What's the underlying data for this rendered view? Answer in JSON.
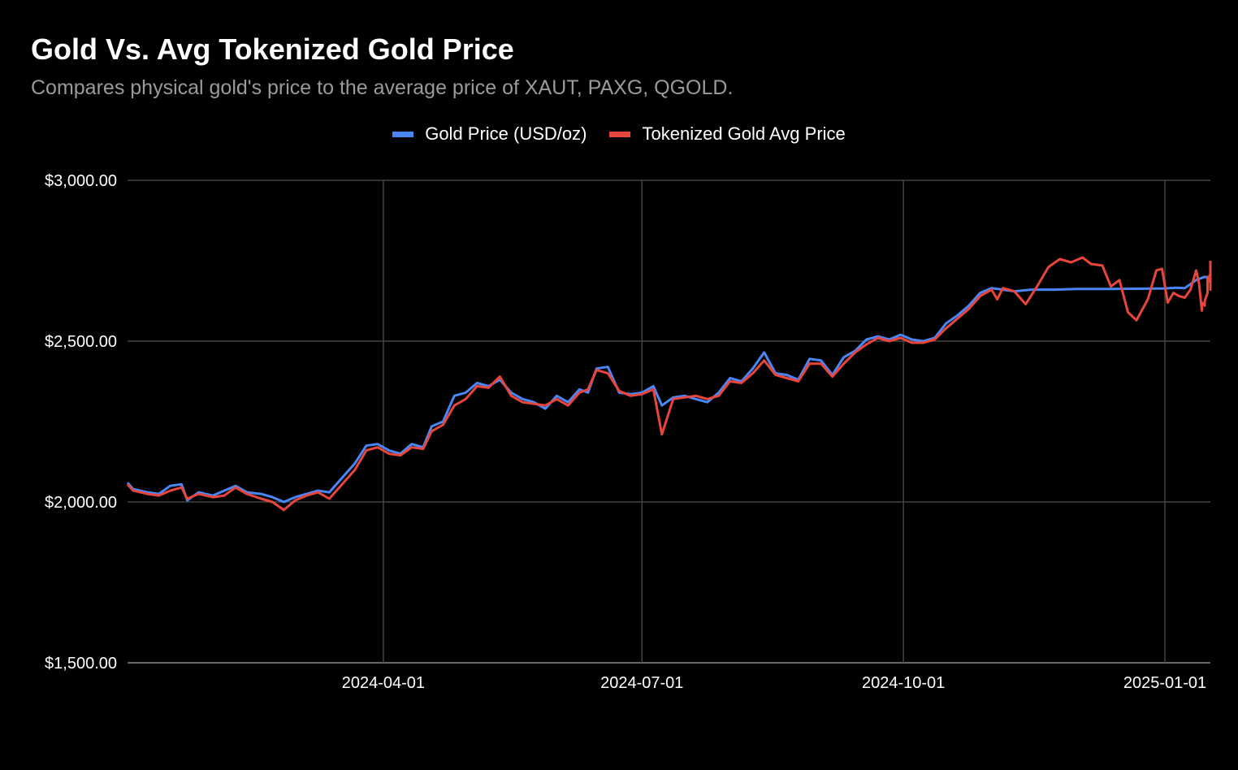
{
  "chart_data": {
    "type": "line",
    "title": "Gold Vs. Avg Tokenized Gold Price",
    "subtitle": "Compares physical gold's price to the average price of XAUT, PAXG, QGOLD.",
    "xlabel": "",
    "ylabel": "",
    "xlim": [
      "2024-01-02",
      "2025-01-17"
    ],
    "ylim": [
      1500,
      3000
    ],
    "y_ticks": [
      {
        "value": 1500,
        "label": "$1,500.00"
      },
      {
        "value": 2000,
        "label": "$2,000.00"
      },
      {
        "value": 2500,
        "label": "$2,500.00"
      },
      {
        "value": 3000,
        "label": "$3,000.00"
      }
    ],
    "x_ticks": [
      {
        "value": "2024-04-01",
        "label": "2024-04-01"
      },
      {
        "value": "2024-07-01",
        "label": "2024-07-01"
      },
      {
        "value": "2024-10-01",
        "label": "2024-10-01"
      },
      {
        "value": "2025-01-01",
        "label": "2025-01-01"
      }
    ],
    "grid": true,
    "legend_position": "top-center",
    "series": [
      {
        "name": "Gold Price (USD/oz)",
        "color": "#4a86f5",
        "points": [
          [
            "2024-01-02",
            2060
          ],
          [
            "2024-01-04",
            2040
          ],
          [
            "2024-01-09",
            2030
          ],
          [
            "2024-01-13",
            2025
          ],
          [
            "2024-01-17",
            2050
          ],
          [
            "2024-01-21",
            2055
          ],
          [
            "2024-01-23",
            2005
          ],
          [
            "2024-01-27",
            2030
          ],
          [
            "2024-02-01",
            2020
          ],
          [
            "2024-02-05",
            2035
          ],
          [
            "2024-02-09",
            2050
          ],
          [
            "2024-02-13",
            2030
          ],
          [
            "2024-02-18",
            2025
          ],
          [
            "2024-02-22",
            2015
          ],
          [
            "2024-02-26",
            2000
          ],
          [
            "2024-03-01",
            2015
          ],
          [
            "2024-03-05",
            2025
          ],
          [
            "2024-03-09",
            2035
          ],
          [
            "2024-03-13",
            2030
          ],
          [
            "2024-03-18",
            2080
          ],
          [
            "2024-03-22",
            2120
          ],
          [
            "2024-03-26",
            2175
          ],
          [
            "2024-03-30",
            2180
          ],
          [
            "2024-04-03",
            2160
          ],
          [
            "2024-04-07",
            2150
          ],
          [
            "2024-04-11",
            2180
          ],
          [
            "2024-04-15",
            2170
          ],
          [
            "2024-04-18",
            2235
          ],
          [
            "2024-04-22",
            2250
          ],
          [
            "2024-04-26",
            2330
          ],
          [
            "2024-04-30",
            2340
          ],
          [
            "2024-05-04",
            2370
          ],
          [
            "2024-05-08",
            2360
          ],
          [
            "2024-05-12",
            2380
          ],
          [
            "2024-05-16",
            2340
          ],
          [
            "2024-05-20",
            2320
          ],
          [
            "2024-05-24",
            2310
          ],
          [
            "2024-05-28",
            2290
          ],
          [
            "2024-06-01",
            2330
          ],
          [
            "2024-06-05",
            2310
          ],
          [
            "2024-06-09",
            2350
          ],
          [
            "2024-06-12",
            2340
          ],
          [
            "2024-06-15",
            2415
          ],
          [
            "2024-06-19",
            2420
          ],
          [
            "2024-06-23",
            2340
          ],
          [
            "2024-06-27",
            2335
          ],
          [
            "2024-07-01",
            2340
          ],
          [
            "2024-07-05",
            2360
          ],
          [
            "2024-07-08",
            2300
          ],
          [
            "2024-07-12",
            2325
          ],
          [
            "2024-07-16",
            2330
          ],
          [
            "2024-07-20",
            2320
          ],
          [
            "2024-07-24",
            2310
          ],
          [
            "2024-07-28",
            2340
          ],
          [
            "2024-08-01",
            2385
          ],
          [
            "2024-08-05",
            2375
          ],
          [
            "2024-08-09",
            2415
          ],
          [
            "2024-08-13",
            2465
          ],
          [
            "2024-08-17",
            2400
          ],
          [
            "2024-08-21",
            2395
          ],
          [
            "2024-08-25",
            2380
          ],
          [
            "2024-08-29",
            2445
          ],
          [
            "2024-09-02",
            2440
          ],
          [
            "2024-09-06",
            2395
          ],
          [
            "2024-09-10",
            2450
          ],
          [
            "2024-09-14",
            2470
          ],
          [
            "2024-09-18",
            2505
          ],
          [
            "2024-09-22",
            2515
          ],
          [
            "2024-09-26",
            2505
          ],
          [
            "2024-09-30",
            2520
          ],
          [
            "2024-10-04",
            2505
          ],
          [
            "2024-10-08",
            2500
          ],
          [
            "2024-10-12",
            2510
          ],
          [
            "2024-10-16",
            2555
          ],
          [
            "2024-10-20",
            2580
          ],
          [
            "2024-10-24",
            2610
          ],
          [
            "2024-10-28",
            2650
          ],
          [
            "2024-11-01",
            2665
          ],
          [
            "2024-11-05",
            2660
          ],
          [
            "2024-11-09",
            2655
          ],
          [
            "2024-11-15",
            2660
          ],
          [
            "2024-11-23",
            2660
          ],
          [
            "2024-12-01",
            2662
          ],
          [
            "2024-12-11",
            2662
          ],
          [
            "2024-12-21",
            2663
          ],
          [
            "2025-01-01",
            2664
          ],
          [
            "2025-01-05",
            2666
          ],
          [
            "2025-01-08",
            2665
          ],
          [
            "2025-01-12",
            2690
          ],
          [
            "2025-01-15",
            2700
          ],
          [
            "2025-01-17",
            2695
          ]
        ]
      },
      {
        "name": "Tokenized Gold Avg Price",
        "color": "#e8453c",
        "points": [
          [
            "2024-01-02",
            2055
          ],
          [
            "2024-01-04",
            2035
          ],
          [
            "2024-01-09",
            2025
          ],
          [
            "2024-01-13",
            2020
          ],
          [
            "2024-01-17",
            2035
          ],
          [
            "2024-01-21",
            2045
          ],
          [
            "2024-01-23",
            2010
          ],
          [
            "2024-01-27",
            2025
          ],
          [
            "2024-02-01",
            2015
          ],
          [
            "2024-02-05",
            2020
          ],
          [
            "2024-02-09",
            2045
          ],
          [
            "2024-02-13",
            2025
          ],
          [
            "2024-02-18",
            2010
          ],
          [
            "2024-02-22",
            2000
          ],
          [
            "2024-02-26",
            1975
          ],
          [
            "2024-03-01",
            2005
          ],
          [
            "2024-03-05",
            2020
          ],
          [
            "2024-03-09",
            2030
          ],
          [
            "2024-03-13",
            2010
          ],
          [
            "2024-03-18",
            2060
          ],
          [
            "2024-03-22",
            2100
          ],
          [
            "2024-03-26",
            2160
          ],
          [
            "2024-03-30",
            2170
          ],
          [
            "2024-04-03",
            2150
          ],
          [
            "2024-04-07",
            2145
          ],
          [
            "2024-04-11",
            2170
          ],
          [
            "2024-04-15",
            2165
          ],
          [
            "2024-04-18",
            2220
          ],
          [
            "2024-04-22",
            2240
          ],
          [
            "2024-04-26",
            2300
          ],
          [
            "2024-04-30",
            2320
          ],
          [
            "2024-05-04",
            2360
          ],
          [
            "2024-05-08",
            2355
          ],
          [
            "2024-05-12",
            2390
          ],
          [
            "2024-05-16",
            2330
          ],
          [
            "2024-05-20",
            2310
          ],
          [
            "2024-05-24",
            2305
          ],
          [
            "2024-05-28",
            2300
          ],
          [
            "2024-06-01",
            2320
          ],
          [
            "2024-06-05",
            2300
          ],
          [
            "2024-06-09",
            2340
          ],
          [
            "2024-06-12",
            2350
          ],
          [
            "2024-06-15",
            2410
          ],
          [
            "2024-06-19",
            2400
          ],
          [
            "2024-06-23",
            2345
          ],
          [
            "2024-06-27",
            2330
          ],
          [
            "2024-07-01",
            2335
          ],
          [
            "2024-07-05",
            2350
          ],
          [
            "2024-07-08",
            2210
          ],
          [
            "2024-07-12",
            2320
          ],
          [
            "2024-07-16",
            2325
          ],
          [
            "2024-07-20",
            2330
          ],
          [
            "2024-07-24",
            2320
          ],
          [
            "2024-07-28",
            2330
          ],
          [
            "2024-08-01",
            2375
          ],
          [
            "2024-08-05",
            2370
          ],
          [
            "2024-08-09",
            2400
          ],
          [
            "2024-08-13",
            2440
          ],
          [
            "2024-08-17",
            2395
          ],
          [
            "2024-08-21",
            2385
          ],
          [
            "2024-08-25",
            2375
          ],
          [
            "2024-08-29",
            2430
          ],
          [
            "2024-09-02",
            2430
          ],
          [
            "2024-09-06",
            2390
          ],
          [
            "2024-09-10",
            2430
          ],
          [
            "2024-09-14",
            2465
          ],
          [
            "2024-09-18",
            2490
          ],
          [
            "2024-09-22",
            2510
          ],
          [
            "2024-09-26",
            2500
          ],
          [
            "2024-09-30",
            2510
          ],
          [
            "2024-10-04",
            2495
          ],
          [
            "2024-10-08",
            2495
          ],
          [
            "2024-10-12",
            2505
          ],
          [
            "2024-10-16",
            2540
          ],
          [
            "2024-10-20",
            2570
          ],
          [
            "2024-10-24",
            2600
          ],
          [
            "2024-10-28",
            2640
          ],
          [
            "2024-11-01",
            2660
          ],
          [
            "2024-11-03",
            2630
          ],
          [
            "2024-11-05",
            2665
          ],
          [
            "2024-11-09",
            2655
          ],
          [
            "2024-11-13",
            2615
          ],
          [
            "2024-11-17",
            2670
          ],
          [
            "2024-11-21",
            2730
          ],
          [
            "2024-11-25",
            2755
          ],
          [
            "2024-11-29",
            2745
          ],
          [
            "2024-12-03",
            2760
          ],
          [
            "2024-12-06",
            2740
          ],
          [
            "2024-12-10",
            2735
          ],
          [
            "2024-12-13",
            2670
          ],
          [
            "2024-12-16",
            2690
          ],
          [
            "2024-12-19",
            2590
          ],
          [
            "2024-12-22",
            2565
          ],
          [
            "2024-12-26",
            2630
          ],
          [
            "2024-12-29",
            2720
          ],
          [
            "2024-12-31",
            2725
          ],
          [
            "2025-01-02",
            2620
          ],
          [
            "2025-01-04",
            2650
          ],
          [
            "2025-01-06",
            2640
          ],
          [
            "2025-01-08",
            2635
          ],
          [
            "2025-01-10",
            2660
          ],
          [
            "2025-01-12",
            2720
          ],
          [
            "2025-01-13",
            2680
          ],
          [
            "2025-01-14",
            2595
          ],
          [
            "2025-01-14",
            2620
          ],
          [
            "2025-01-15",
            2610
          ],
          [
            "2025-01-15",
            2625
          ],
          [
            "2025-01-16",
            2650
          ],
          [
            "2025-01-16",
            2700
          ],
          [
            "2025-01-16",
            2680
          ],
          [
            "2025-01-17",
            2710
          ],
          [
            "2025-01-17",
            2660
          ],
          [
            "2025-01-17",
            2720
          ],
          [
            "2025-01-17",
            2750
          ]
        ]
      }
    ]
  }
}
